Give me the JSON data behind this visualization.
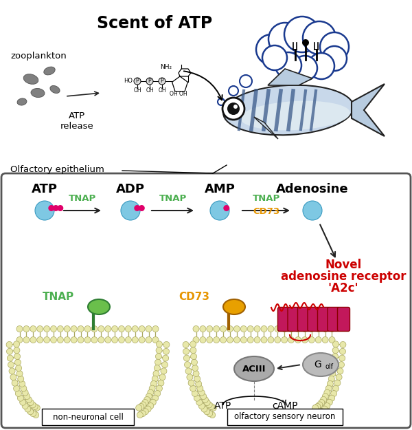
{
  "title": "Scent of ATP",
  "background_color": "#ffffff",
  "top_section": {
    "zooplankton_label": "zooplankton",
    "atp_release_label": "ATP\nrelease",
    "olfactory_label": "Olfactory epithelium"
  },
  "pathway_row": {
    "molecules": [
      "ATP",
      "ADP",
      "AMP",
      "Adenosine"
    ],
    "enzymes_top": [
      "TNAP",
      "TNAP",
      "TNAP"
    ],
    "enzymes_bottom": [
      "",
      "",
      "CD73"
    ],
    "enzyme_color_top": "#4caf50",
    "enzyme_color_bottom": "#e69500"
  },
  "novel_receptor": {
    "lines": [
      "Novel",
      "adenosine receptor",
      "'A2c'"
    ],
    "color": "#cc0000"
  },
  "cell_labels": {
    "left": "non-neuronal cell",
    "right": "olfactory sensory neuron"
  },
  "colors": {
    "blue_sphere": "#7ec8e3",
    "magenta_dot": "#e0006a",
    "membrane_head": "#e8e8aa",
    "membrane_tail": "#aaa860",
    "receptor_fill": "#c2185b",
    "receptor_edge": "#8b0000",
    "thought_bubble_edge": "#1a3a8f",
    "fish_body": "#c8d8e8",
    "fish_stripe": "#3a5a8a",
    "fish_eye_outer": "#ffffff",
    "fish_eye_inner": "#222222",
    "tnap_fill": "#6abf4b",
    "tnap_edge": "#2e7d32",
    "tnap_text": "#4caf50",
    "cd73_fill": "#e8a000",
    "cd73_edge": "#a06000",
    "cd73_text": "#e69500",
    "aciii_fill": "#aaaaaa",
    "golf_fill": "#bbbbbb",
    "arrow_color": "#222222",
    "box_edge": "#555555"
  }
}
